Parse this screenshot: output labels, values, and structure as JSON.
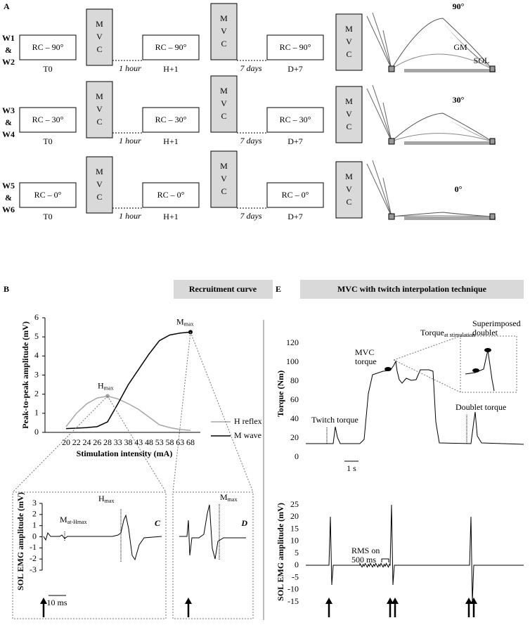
{
  "panel_a": {
    "label": "A",
    "mvc": [
      "M",
      "V",
      "C"
    ],
    "intervals": [
      "1 hour",
      "7 days"
    ],
    "times": [
      "T0",
      "H+1",
      "D+7"
    ],
    "muscles": [
      "GM",
      "SOL"
    ],
    "rows": [
      {
        "group": [
          "W1",
          "&",
          "W2"
        ],
        "condition": "RC – 90°",
        "angle": "90°"
      },
      {
        "group": [
          "W3",
          "&",
          "W4"
        ],
        "condition": "RC – 30°",
        "angle": "30°"
      },
      {
        "group": [
          "W5",
          "&",
          "W6"
        ],
        "condition": "RC – 0°",
        "angle": "0°"
      }
    ]
  },
  "panel_b": {
    "label": "B",
    "header": "Recruitment curve",
    "h_label": {
      "text": "H",
      "sub": "max"
    },
    "m_label": {
      "text": "M",
      "sub": "max"
    }
  },
  "chart_data": {
    "type": "line",
    "ylabel": "Peak-to-peak amplitude (mV)",
    "xlabel": "Stimulation intensity (mA)",
    "categories": [
      "20",
      "22",
      "24",
      "26",
      "28",
      "33",
      "38",
      "43",
      "48",
      "53",
      "58",
      "63",
      "68"
    ],
    "ylim": [
      0,
      6
    ],
    "yticks": [
      0,
      1,
      2,
      3,
      4,
      5,
      6
    ],
    "series": [
      {
        "name": "H reflex",
        "color": "#a6a6a6",
        "values": [
          0.3,
          1.0,
          1.5,
          1.8,
          1.9,
          1.75,
          1.5,
          1.2,
          0.8,
          0.4,
          0.25,
          0.15,
          0.1
        ]
      },
      {
        "name": "M wave",
        "color": "#000000",
        "values": [
          0.2,
          0.22,
          0.25,
          0.3,
          0.55,
          1.5,
          2.5,
          3.3,
          4.1,
          4.8,
          5.1,
          5.2,
          5.25
        ]
      }
    ]
  },
  "panel_c": {
    "label": "C",
    "ylabel": "SOL EMG amplitude (mV)",
    "ylim": [
      -3,
      3
    ],
    "yticks": [
      3,
      2,
      1,
      0,
      -1,
      -2,
      -3
    ],
    "m_label": {
      "text": "M",
      "sub": "at-Hmax"
    },
    "h_label": {
      "text": "H",
      "sub": "max"
    },
    "scale": "10 ms"
  },
  "panel_d": {
    "label": "D",
    "m_label": {
      "text": "M",
      "sub": "max"
    }
  },
  "panel_e": {
    "label": "E",
    "header": "MVC with twitch interpolation technique",
    "torque": {
      "ylabel": "Torque (Nm)",
      "ylim": [
        0,
        120
      ],
      "yticks": [
        0,
        20,
        40,
        60,
        80,
        100,
        120
      ],
      "scale": "1 s",
      "twitch": "Twitch torque",
      "mvc": [
        "MVC",
        "torque"
      ],
      "stim": {
        "text": "Torque",
        "sub": "at stimulation"
      },
      "doublet_sup": [
        "Superimposed",
        "doublet"
      ],
      "doublet": "Doublet torque"
    },
    "emg": {
      "ylabel": "SOL EMG amplitude (mV)",
      "ylim": [
        -15,
        25
      ],
      "yticks": [
        -15,
        -10,
        -5,
        0,
        5,
        10,
        15,
        20,
        25
      ],
      "rms": [
        "RMS on",
        "500 ms"
      ]
    }
  }
}
